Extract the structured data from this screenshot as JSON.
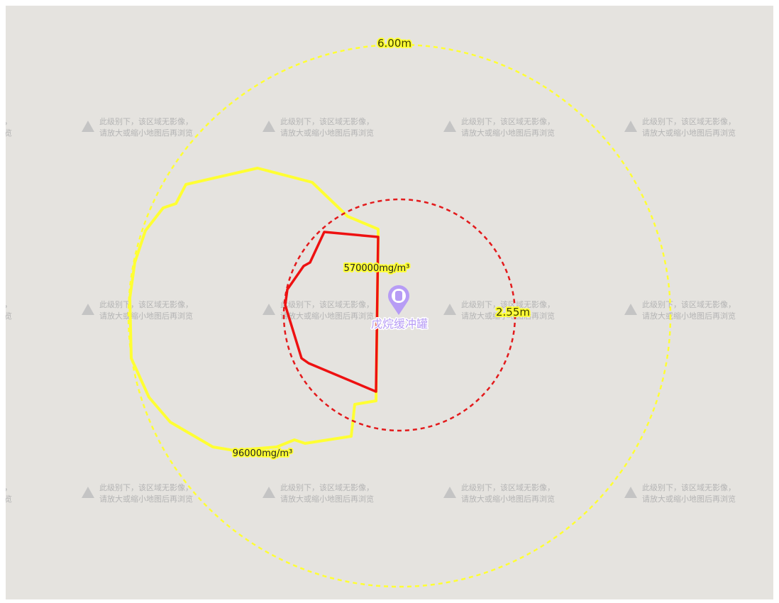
{
  "map": {
    "tile_notice": [
      "此级别下，该区域无影像，",
      "请放大或缩小地图后再浏览"
    ],
    "outer_radius_label": "6.00m",
    "inner_radius_label": "2.55m",
    "inner_zone_label": "570000mg/m³",
    "outer_zone_label": "96000mg/m³",
    "marker_label": "戊烷缓冲罐"
  }
}
